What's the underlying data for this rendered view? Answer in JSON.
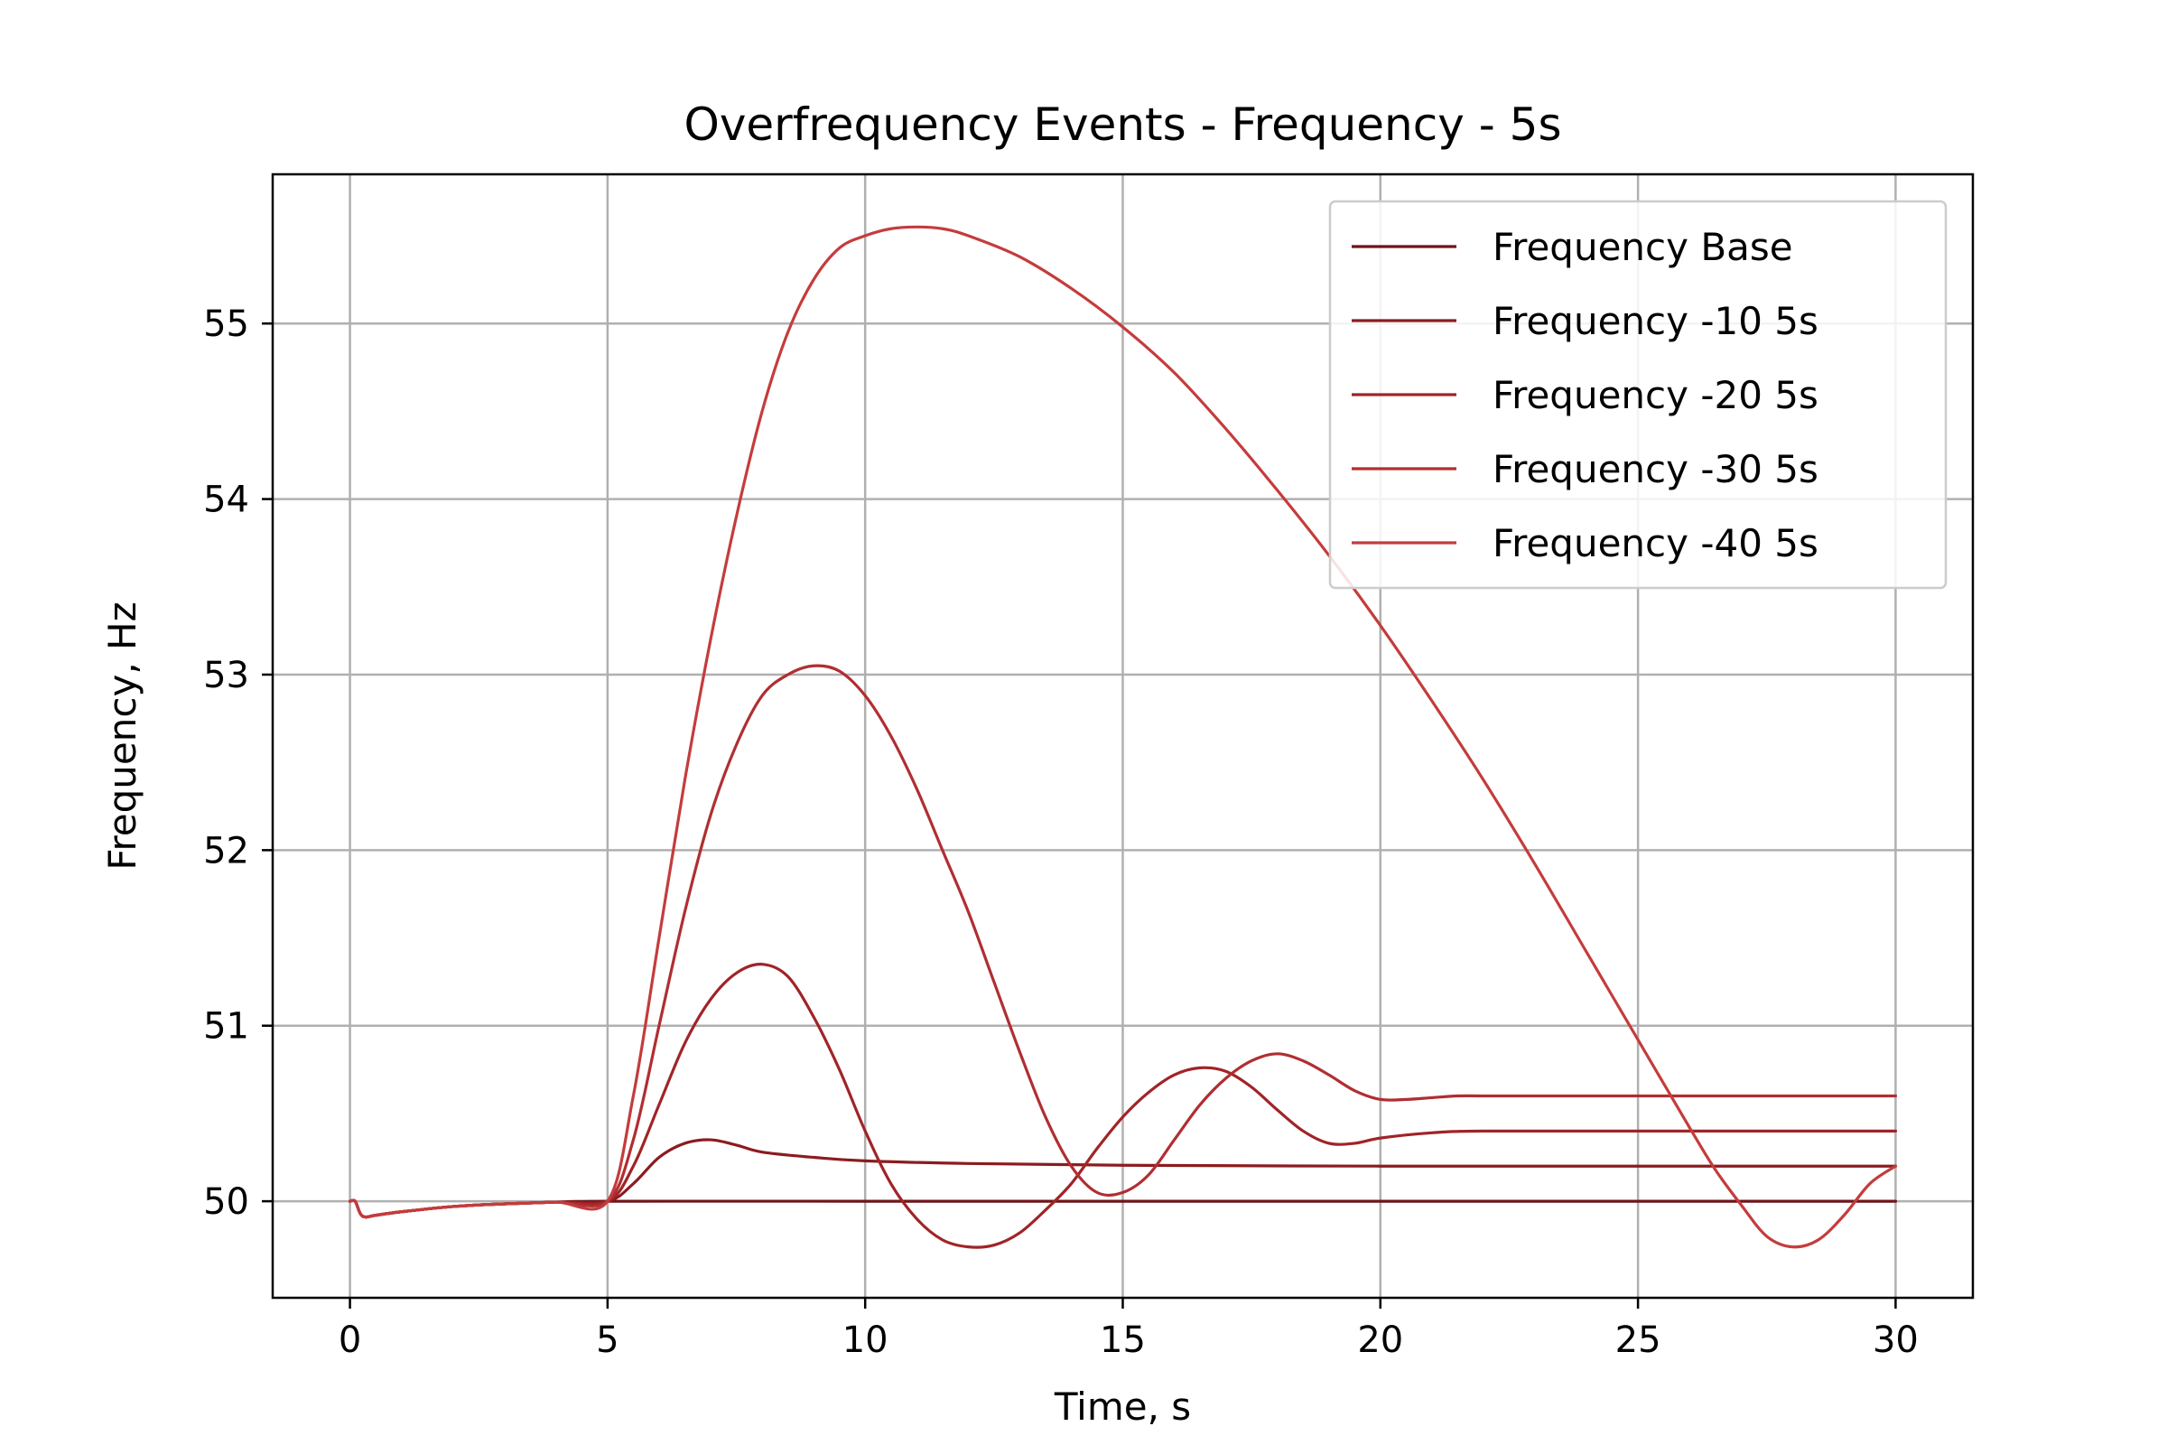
{
  "chart_data": {
    "type": "line",
    "title": "Overfrequency Events - Frequency - 5s",
    "xlabel": "Time, s",
    "ylabel": "Frequency, Hz",
    "xlim": [
      -1.5,
      31.5
    ],
    "ylim": [
      49.45,
      55.85
    ],
    "xticks": [
      0,
      5,
      10,
      15,
      20,
      25,
      30
    ],
    "yticks": [
      50,
      51,
      52,
      53,
      54,
      55
    ],
    "grid": true,
    "legend_position": "top-right",
    "series": [
      {
        "name": "Frequency Base",
        "color": "#6e1418",
        "x": [
          0,
          0.1,
          0.2,
          0.3,
          0.5,
          1,
          2,
          3,
          4,
          5,
          10,
          15,
          20,
          25,
          30
        ],
        "y": [
          50.0,
          50.0,
          49.93,
          49.91,
          49.92,
          49.94,
          49.97,
          49.985,
          49.995,
          50.0,
          50.0,
          50.0,
          50.0,
          50.0,
          50.0
        ]
      },
      {
        "name": "Frequency -10 5s",
        "color": "#8b1c20",
        "x": [
          0,
          0.1,
          0.2,
          0.3,
          0.5,
          1,
          2,
          3,
          4,
          5,
          5.5,
          6,
          6.5,
          7,
          7.5,
          8,
          9,
          10,
          12,
          15,
          20,
          25,
          30
        ],
        "y": [
          50.0,
          50.0,
          49.93,
          49.91,
          49.92,
          49.94,
          49.97,
          49.985,
          49.995,
          50.0,
          50.1,
          50.25,
          50.33,
          50.35,
          50.32,
          50.28,
          50.25,
          50.23,
          50.215,
          50.205,
          50.2,
          50.2,
          50.2
        ]
      },
      {
        "name": "Frequency -20 5s",
        "color": "#a02428",
        "x": [
          0,
          0.1,
          0.2,
          0.3,
          0.5,
          1,
          2,
          3,
          4,
          5,
          5.5,
          6,
          6.5,
          7,
          7.5,
          8,
          8.5,
          9,
          9.5,
          10,
          10.5,
          11,
          11.5,
          12,
          12.5,
          13,
          13.5,
          14,
          14.5,
          15,
          15.5,
          16,
          16.5,
          17,
          17.5,
          18,
          18.5,
          19,
          19.5,
          20,
          21,
          22,
          25,
          30
        ],
        "y": [
          50.0,
          50.0,
          49.93,
          49.91,
          49.92,
          49.94,
          49.97,
          49.985,
          49.995,
          50.0,
          50.2,
          50.55,
          50.9,
          51.15,
          51.3,
          51.35,
          51.28,
          51.05,
          50.75,
          50.4,
          50.1,
          49.9,
          49.78,
          49.74,
          49.75,
          49.82,
          49.95,
          50.1,
          50.3,
          50.48,
          50.62,
          50.72,
          50.76,
          50.74,
          50.65,
          50.52,
          50.4,
          50.33,
          50.33,
          50.36,
          50.39,
          50.4,
          50.4,
          50.4
        ]
      },
      {
        "name": "Frequency -30 5s",
        "color": "#b02e32",
        "x": [
          0,
          0.1,
          0.2,
          0.3,
          0.5,
          1,
          2,
          3,
          4,
          5,
          5.5,
          6,
          6.5,
          7,
          7.5,
          8,
          8.5,
          9,
          9.5,
          10,
          10.5,
          11,
          11.5,
          12,
          12.5,
          13,
          13.5,
          14,
          14.5,
          15,
          15.5,
          16,
          16.5,
          17,
          17.5,
          18,
          18.5,
          19,
          19.5,
          20,
          20.5,
          21,
          21.5,
          22,
          23,
          25,
          30
        ],
        "y": [
          50.0,
          50.0,
          49.93,
          49.91,
          49.92,
          49.94,
          49.97,
          49.985,
          49.995,
          50.0,
          50.35,
          51.0,
          51.65,
          52.2,
          52.6,
          52.88,
          53.0,
          53.05,
          53.02,
          52.88,
          52.65,
          52.35,
          52.0,
          51.65,
          51.25,
          50.85,
          50.48,
          50.2,
          50.05,
          50.05,
          50.15,
          50.35,
          50.55,
          50.7,
          50.8,
          50.84,
          50.8,
          50.72,
          50.63,
          50.58,
          50.58,
          50.59,
          50.6,
          50.6,
          50.6,
          50.6,
          50.6
        ]
      },
      {
        "name": "Frequency -40 5s",
        "color": "#c43c3c",
        "x": [
          0,
          0.1,
          0.2,
          0.3,
          0.5,
          1,
          2,
          3,
          4,
          5,
          5.5,
          6,
          6.5,
          7,
          7.5,
          8,
          8.5,
          9,
          9.5,
          10,
          10.5,
          11,
          11.5,
          12,
          13,
          14,
          15,
          16,
          17,
          18,
          19,
          20,
          21,
          22,
          23,
          24,
          25,
          26,
          26.5,
          27,
          27.5,
          28,
          28.5,
          29,
          29.5,
          30
        ],
        "y": [
          50.0,
          50.0,
          49.93,
          49.91,
          49.92,
          49.94,
          49.97,
          49.985,
          49.995,
          50.0,
          50.6,
          51.5,
          52.4,
          53.2,
          53.9,
          54.5,
          54.95,
          55.25,
          55.43,
          55.5,
          55.54,
          55.55,
          55.54,
          55.5,
          55.38,
          55.2,
          54.98,
          54.72,
          54.4,
          54.05,
          53.68,
          53.28,
          52.85,
          52.4,
          51.92,
          51.42,
          50.92,
          50.42,
          50.18,
          49.98,
          49.8,
          49.74,
          49.78,
          49.92,
          50.1,
          50.2
        ]
      }
    ]
  }
}
